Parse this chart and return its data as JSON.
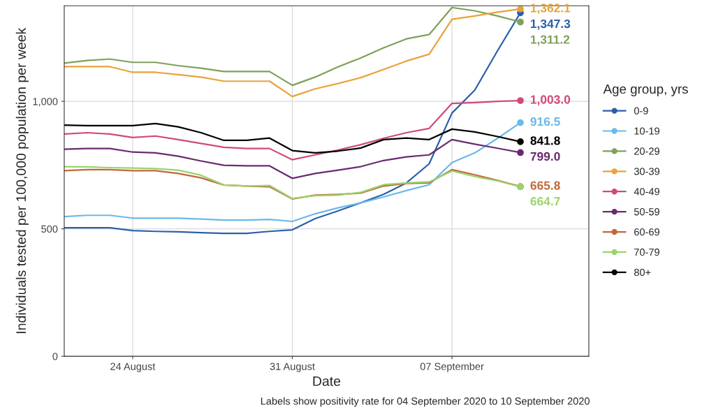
{
  "chart_data": {
    "type": "line",
    "xlabel": "Date",
    "ylabel": "Individuals tested per 100,000 population per week",
    "legend_title": "Age group, yrs",
    "annotations": [
      "Labels show positivity rate for 04 September 2020 to 10 September 2020"
    ],
    "x": [
      "2020-08-21",
      "2020-08-22",
      "2020-08-23",
      "2020-08-24",
      "2020-08-25",
      "2020-08-26",
      "2020-08-27",
      "2020-08-28",
      "2020-08-29",
      "2020-08-30",
      "2020-08-31",
      "2020-09-01",
      "2020-09-02",
      "2020-09-03",
      "2020-09-04",
      "2020-09-05",
      "2020-09-06",
      "2020-09-07",
      "2020-09-08",
      "2020-09-09",
      "2020-09-10"
    ],
    "xlim": [
      "2020-08-21",
      "2020-09-13"
    ],
    "xticks": [
      {
        "value": "2020-08-24",
        "label": "24 August"
      },
      {
        "value": "2020-08-31",
        "label": "31 August"
      },
      {
        "value": "2020-09-07",
        "label": "07 September"
      }
    ],
    "ylim": [
      0,
      1375
    ],
    "yticks": [
      0,
      500,
      {
        "value": 1000,
        "label": "1,000"
      }
    ],
    "grid": true,
    "legend": "right",
    "line_style": "solid",
    "series": [
      {
        "name": "0-9",
        "color": "#2c5faa",
        "values": [
          504,
          504,
          504,
          493,
          490,
          488,
          485,
          482,
          482,
          490,
          496,
          540,
          570,
          602,
          635,
          680,
          755,
          954,
          1044,
          1199,
          1347.3
        ],
        "value_labels": [
          null,
          null,
          null,
          null,
          null,
          null,
          null,
          null,
          null,
          null,
          null,
          null,
          null,
          null,
          null,
          null,
          null,
          null,
          null,
          null,
          "1,347.3"
        ]
      },
      {
        "name": "10-19",
        "color": "#6ab9e9",
        "values": [
          548,
          553,
          553,
          542,
          542,
          542,
          538,
          534,
          534,
          537,
          529,
          559,
          582,
          602,
          625,
          650,
          673,
          760,
          798,
          855,
          916.5
        ],
        "value_labels": [
          null,
          null,
          null,
          null,
          null,
          null,
          null,
          null,
          null,
          null,
          null,
          null,
          null,
          null,
          null,
          null,
          null,
          null,
          null,
          null,
          "916.5"
        ]
      },
      {
        "name": "20-29",
        "color": "#7fa05a",
        "values": [
          1150,
          1160,
          1166,
          1153,
          1153,
          1140,
          1130,
          1117,
          1117,
          1117,
          1063,
          1095,
          1135,
          1170,
          1210,
          1245,
          1262,
          1368,
          1355,
          1335,
          1311.2
        ],
        "value_labels": [
          null,
          null,
          null,
          null,
          null,
          null,
          null,
          null,
          null,
          null,
          null,
          null,
          null,
          null,
          null,
          null,
          null,
          null,
          null,
          null,
          "1,311.2"
        ]
      },
      {
        "name": "30-39",
        "color": "#e8a33a",
        "values": [
          1136,
          1136,
          1136,
          1114,
          1114,
          1105,
          1095,
          1079,
          1079,
          1079,
          1019,
          1049,
          1070,
          1093,
          1125,
          1158,
          1185,
          1322,
          1335,
          1350,
          1362.1
        ],
        "value_labels": [
          null,
          null,
          null,
          null,
          null,
          null,
          null,
          null,
          null,
          null,
          null,
          null,
          null,
          null,
          null,
          null,
          null,
          null,
          null,
          null,
          "1,362.1"
        ]
      },
      {
        "name": "40-49",
        "color": "#d1497a",
        "values": [
          872,
          877,
          872,
          858,
          864,
          850,
          835,
          820,
          815,
          815,
          771,
          790,
          809,
          830,
          855,
          877,
          894,
          992,
          995,
          1000,
          1003.0
        ],
        "value_labels": [
          null,
          null,
          null,
          null,
          null,
          null,
          null,
          null,
          null,
          null,
          null,
          null,
          null,
          null,
          null,
          null,
          null,
          null,
          null,
          null,
          "1,003.0"
        ]
      },
      {
        "name": "50-59",
        "color": "#6a2a72",
        "values": [
          812,
          815,
          815,
          801,
          798,
          785,
          766,
          749,
          747,
          747,
          698,
          717,
          730,
          744,
          768,
          782,
          790,
          850,
          832,
          816,
          799.0
        ],
        "value_labels": [
          null,
          null,
          null,
          null,
          null,
          null,
          null,
          null,
          null,
          null,
          null,
          null,
          null,
          null,
          null,
          null,
          null,
          null,
          null,
          null,
          "799.0"
        ]
      },
      {
        "name": "60-69",
        "color": "#c0683a",
        "values": [
          728,
          732,
          732,
          728,
          728,
          717,
          700,
          672,
          668,
          665,
          617,
          632,
          635,
          640,
          668,
          678,
          680,
          732,
          712,
          690,
          665.8
        ],
        "value_labels": [
          null,
          null,
          null,
          null,
          null,
          null,
          null,
          null,
          null,
          null,
          null,
          null,
          null,
          null,
          null,
          null,
          null,
          null,
          null,
          null,
          "665.8"
        ]
      },
      {
        "name": "70-79",
        "color": "#9bd36b",
        "values": [
          744,
          743,
          740,
          738,
          736,
          730,
          710,
          672,
          668,
          670,
          619,
          630,
          632,
          643,
          673,
          680,
          684,
          727,
          705,
          688,
          664.7
        ],
        "value_labels": [
          null,
          null,
          null,
          null,
          null,
          null,
          null,
          null,
          null,
          null,
          null,
          null,
          null,
          null,
          null,
          null,
          null,
          null,
          null,
          null,
          "664.7"
        ]
      },
      {
        "name": "80+",
        "color": "#000000",
        "values": [
          907,
          905,
          905,
          905,
          913,
          900,
          877,
          847,
          847,
          856,
          807,
          798,
          805,
          817,
          850,
          856,
          850,
          891,
          880,
          862,
          841.8
        ],
        "value_labels": [
          null,
          null,
          null,
          null,
          null,
          null,
          null,
          null,
          null,
          null,
          null,
          null,
          null,
          null,
          null,
          null,
          null,
          null,
          null,
          null,
          "841.8"
        ]
      }
    ]
  }
}
